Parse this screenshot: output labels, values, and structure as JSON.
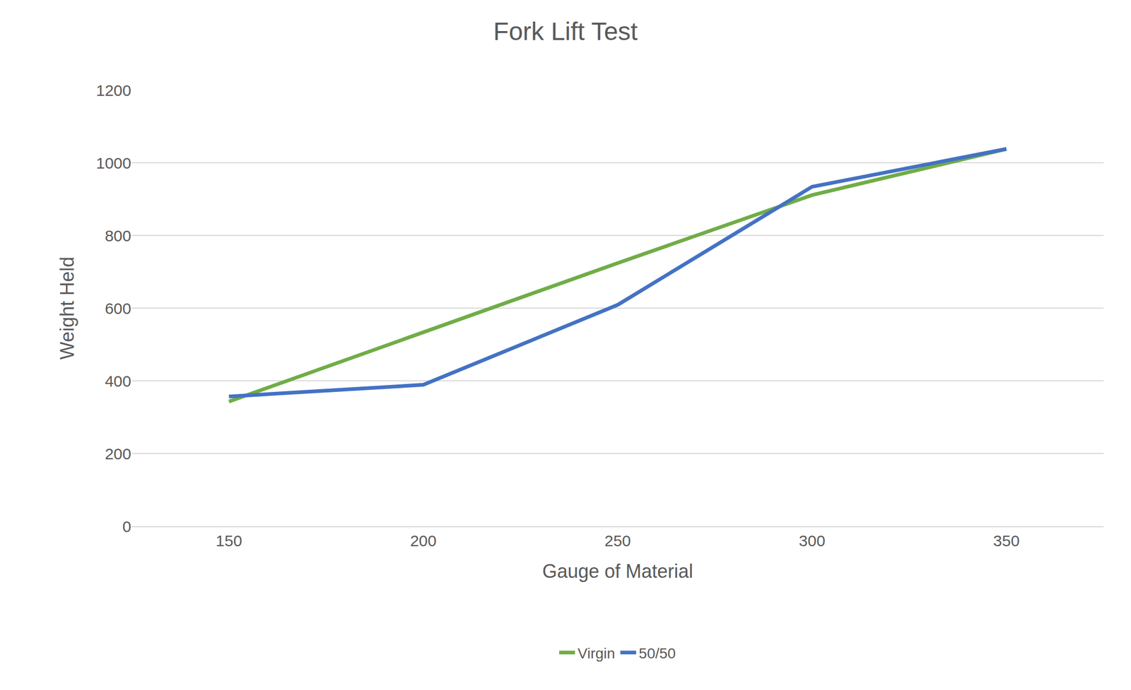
{
  "chart_data": {
    "type": "line",
    "title": "Fork Lift Test",
    "x_label": "Gauge of Material",
    "y_label": "Weight Held",
    "x": [
      150,
      200,
      250,
      300,
      350
    ],
    "series": [
      {
        "name": "Virgin",
        "color": "#70ad47",
        "values": [
          343,
          534,
          724,
          911,
          1038
        ]
      },
      {
        "name": "50/50",
        "color": "#4472c4",
        "values": [
          357,
          389,
          609,
          934,
          1038
        ]
      }
    ],
    "xlim": [
      125,
      375
    ],
    "xticks": [
      150,
      200,
      250,
      300,
      350
    ],
    "ylim": [
      0,
      1200
    ],
    "yticks": [
      0,
      200,
      400,
      600,
      800,
      1000,
      1200
    ],
    "grid": true,
    "legend": "bottom"
  }
}
